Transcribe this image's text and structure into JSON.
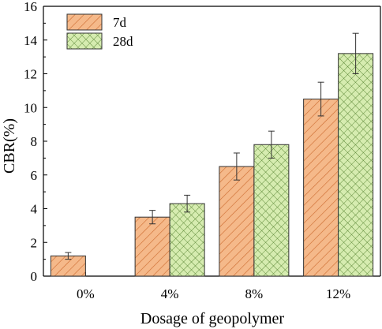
{
  "chart_data": {
    "type": "bar",
    "categories": [
      "0%",
      "4%",
      "8%",
      "12%"
    ],
    "series": [
      {
        "name": "7d",
        "values": [
          1.2,
          3.5,
          6.5,
          10.5
        ],
        "errors": [
          0.2,
          0.4,
          0.8,
          1.0
        ],
        "color": "#f5b98a",
        "hatch_color": "#cc6a2e",
        "pattern": "diagonal"
      },
      {
        "name": "28d",
        "values": [
          null,
          4.3,
          7.8,
          13.2
        ],
        "errors": [
          null,
          0.5,
          0.8,
          1.2
        ],
        "color": "#d6ecb0",
        "hatch_color": "#5f8a3a",
        "pattern": "crosshatch"
      }
    ],
    "xlabel": "Dosage of geopolymer",
    "ylabel": "CBR(%)",
    "ylim": [
      0,
      16
    ],
    "yticks": [
      0,
      2,
      4,
      6,
      8,
      10,
      12,
      14,
      16
    ],
    "grid": false,
    "legend_position": "top-left"
  }
}
